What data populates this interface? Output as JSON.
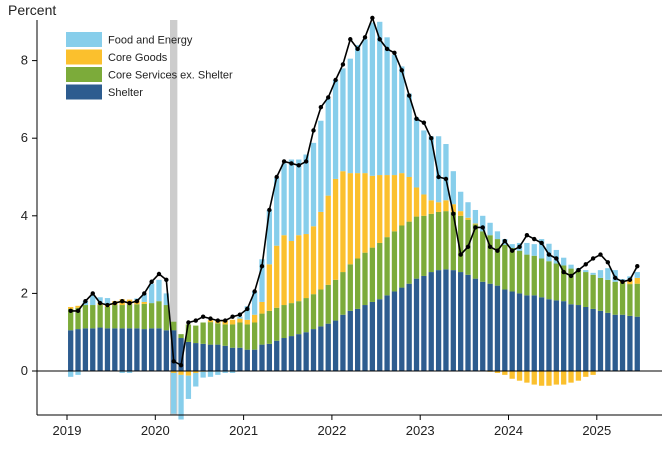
{
  "chart_data": {
    "type": "bar",
    "subtype": "stacked-bar-with-line",
    "ylabel": "Percent",
    "ylim": [
      -1.1,
      9.1
    ],
    "y_ticks": [
      "0",
      "2",
      "4",
      "6",
      "8"
    ],
    "x_ticks": [
      "2019",
      "2020",
      "2021",
      "2022",
      "2023",
      "2024",
      "2025"
    ],
    "x_start_year": 2019,
    "shaded_period": {
      "start": "2020-03",
      "end": "2020-04"
    },
    "legend_position": "top-left",
    "legend": [
      {
        "key": "food_energy",
        "label": "Food and Energy",
        "color": "#87ceeb"
      },
      {
        "key": "core_goods",
        "label": "Core Goods",
        "color": "#fbc02d"
      },
      {
        "key": "core_services",
        "label": "Core Services ex. Shelter",
        "color": "#7cab3a"
      },
      {
        "key": "shelter",
        "label": "Shelter",
        "color": "#2d5c8f"
      }
    ],
    "line_color": "#000000",
    "months": [
      "2019-01",
      "2019-02",
      "2019-03",
      "2019-04",
      "2019-05",
      "2019-06",
      "2019-07",
      "2019-08",
      "2019-09",
      "2019-10",
      "2019-11",
      "2019-12",
      "2020-01",
      "2020-02",
      "2020-03",
      "2020-04",
      "2020-05",
      "2020-06",
      "2020-07",
      "2020-08",
      "2020-09",
      "2020-10",
      "2020-11",
      "2020-12",
      "2021-01",
      "2021-02",
      "2021-03",
      "2021-04",
      "2021-05",
      "2021-06",
      "2021-07",
      "2021-08",
      "2021-09",
      "2021-10",
      "2021-11",
      "2021-12",
      "2022-01",
      "2022-02",
      "2022-03",
      "2022-04",
      "2022-05",
      "2022-06",
      "2022-07",
      "2022-08",
      "2022-09",
      "2022-10",
      "2022-11",
      "2022-12",
      "2023-01",
      "2023-02",
      "2023-03",
      "2023-04",
      "2023-05",
      "2023-06",
      "2023-07",
      "2023-08",
      "2023-09",
      "2023-10",
      "2023-11",
      "2023-12",
      "2024-01",
      "2024-02",
      "2024-03",
      "2024-04",
      "2024-05",
      "2024-06",
      "2024-07",
      "2024-08",
      "2024-09",
      "2024-10",
      "2024-11",
      "2024-12",
      "2025-01",
      "2025-02",
      "2025-03",
      "2025-04",
      "2025-05",
      "2025-06"
    ],
    "series": [
      {
        "name": "Shelter",
        "key": "shelter",
        "color": "#2d5c8f",
        "values": [
          1.05,
          1.08,
          1.1,
          1.1,
          1.12,
          1.1,
          1.1,
          1.1,
          1.1,
          1.1,
          1.08,
          1.1,
          1.1,
          1.05,
          1.05,
          0.85,
          0.75,
          0.72,
          0.7,
          0.68,
          0.68,
          0.65,
          0.6,
          0.6,
          0.55,
          0.55,
          0.68,
          0.7,
          0.78,
          0.85,
          0.9,
          0.95,
          1.0,
          1.08,
          1.15,
          1.22,
          1.3,
          1.45,
          1.55,
          1.6,
          1.7,
          1.78,
          1.85,
          1.95,
          2.05,
          2.15,
          2.25,
          2.38,
          2.45,
          2.55,
          2.6,
          2.62,
          2.6,
          2.55,
          2.48,
          2.38,
          2.3,
          2.25,
          2.2,
          2.1,
          2.05,
          2.0,
          1.95,
          1.95,
          1.9,
          1.85,
          1.82,
          1.8,
          1.72,
          1.7,
          1.65,
          1.6,
          1.55,
          1.5,
          1.45,
          1.45,
          1.42,
          1.4
        ]
      },
      {
        "name": "Core Services ex. Shelter",
        "key": "core_services",
        "color": "#7cab3a",
        "values": [
          0.55,
          0.55,
          0.6,
          0.6,
          0.58,
          0.55,
          0.6,
          0.6,
          0.62,
          0.62,
          0.65,
          0.65,
          0.7,
          0.65,
          0.22,
          0.1,
          0.45,
          0.45,
          0.55,
          0.58,
          0.55,
          0.55,
          0.6,
          0.65,
          0.65,
          0.7,
          0.8,
          0.85,
          0.85,
          0.85,
          0.85,
          0.85,
          0.88,
          0.9,
          0.95,
          1.0,
          1.05,
          1.1,
          1.2,
          1.3,
          1.35,
          1.4,
          1.45,
          1.5,
          1.55,
          1.6,
          1.6,
          1.6,
          1.55,
          1.5,
          1.5,
          1.5,
          1.5,
          1.45,
          1.42,
          1.4,
          1.3,
          1.25,
          1.2,
          1.15,
          1.12,
          1.1,
          1.05,
          1.02,
          1.0,
          0.98,
          0.95,
          0.92,
          0.92,
          0.9,
          0.9,
          0.88,
          0.85,
          0.85,
          0.85,
          0.82,
          0.82,
          0.85
        ]
      },
      {
        "name": "Core Goods",
        "key": "core_goods",
        "color": "#fbc02d",
        "values": [
          0.05,
          0.05,
          0.0,
          0.0,
          0.05,
          0.08,
          0.1,
          0.15,
          0.12,
          0.1,
          0.05,
          0.0,
          0.0,
          0.0,
          -0.05,
          -0.1,
          -0.12,
          -0.05,
          -0.02,
          0.05,
          0.08,
          0.1,
          0.12,
          0.1,
          0.12,
          0.2,
          0.3,
          1.2,
          1.6,
          1.8,
          1.6,
          1.7,
          1.65,
          1.75,
          2.0,
          2.3,
          2.6,
          2.6,
          2.35,
          2.2,
          2.05,
          1.85,
          1.75,
          1.6,
          1.45,
          1.35,
          1.15,
          0.75,
          0.55,
          0.35,
          0.25,
          0.28,
          0.2,
          0.12,
          0.05,
          0.02,
          0.0,
          -0.02,
          -0.05,
          -0.1,
          -0.2,
          -0.25,
          -0.3,
          -0.35,
          -0.38,
          -0.38,
          -0.35,
          -0.35,
          -0.3,
          -0.25,
          -0.15,
          -0.1,
          0.0,
          0.0,
          0.0,
          0.05,
          0.1,
          0.15
        ]
      },
      {
        "name": "Food and Energy",
        "key": "food_energy",
        "color": "#87ceeb",
        "values": [
          -0.15,
          -0.1,
          0.1,
          0.25,
          0.15,
          0.15,
          0.0,
          -0.05,
          -0.05,
          0.05,
          0.2,
          0.5,
          0.55,
          0.3,
          -1.05,
          -1.15,
          -0.6,
          -0.35,
          -0.15,
          -0.15,
          -0.1,
          -0.05,
          -0.05,
          0.05,
          0.35,
          0.6,
          1.1,
          1.4,
          1.75,
          1.85,
          2.1,
          1.95,
          2.05,
          2.15,
          2.35,
          2.5,
          2.55,
          2.65,
          2.95,
          3.3,
          3.45,
          3.95,
          3.95,
          3.55,
          3.1,
          2.75,
          2.15,
          1.8,
          1.65,
          1.65,
          1.7,
          1.45,
          0.85,
          0.5,
          0.4,
          0.35,
          0.4,
          0.32,
          0.2,
          0.15,
          0.1,
          0.2,
          0.3,
          0.3,
          0.5,
          0.45,
          0.35,
          0.2,
          0.1,
          0.05,
          0.05,
          0.05,
          0.2,
          0.3,
          0.3,
          0.05,
          0.1,
          0.15
        ]
      }
    ],
    "total_line": [
      1.55,
      1.55,
      1.8,
      2.0,
      1.75,
      1.7,
      1.75,
      1.8,
      1.75,
      1.8,
      2.0,
      2.3,
      2.5,
      2.35,
      0.25,
      0.15,
      1.25,
      1.3,
      1.4,
      1.35,
      1.3,
      1.3,
      1.4,
      1.45,
      1.6,
      2.05,
      2.7,
      4.15,
      5.0,
      5.4,
      5.35,
      5.3,
      5.4,
      6.2,
      6.8,
      7.05,
      7.5,
      7.9,
      8.55,
      8.3,
      8.6,
      9.1,
      8.55,
      8.3,
      8.2,
      7.75,
      7.1,
      6.5,
      6.4,
      6.0,
      5.0,
      4.95,
      4.05,
      3.0,
      3.2,
      3.7,
      3.7,
      3.2,
      3.1,
      3.35,
      3.1,
      3.2,
      3.5,
      3.4,
      3.3,
      3.0,
      2.9,
      2.55,
      2.45,
      2.6,
      2.75,
      2.9,
      3.0,
      2.8,
      2.4,
      2.3,
      2.35,
      2.7
    ]
  }
}
